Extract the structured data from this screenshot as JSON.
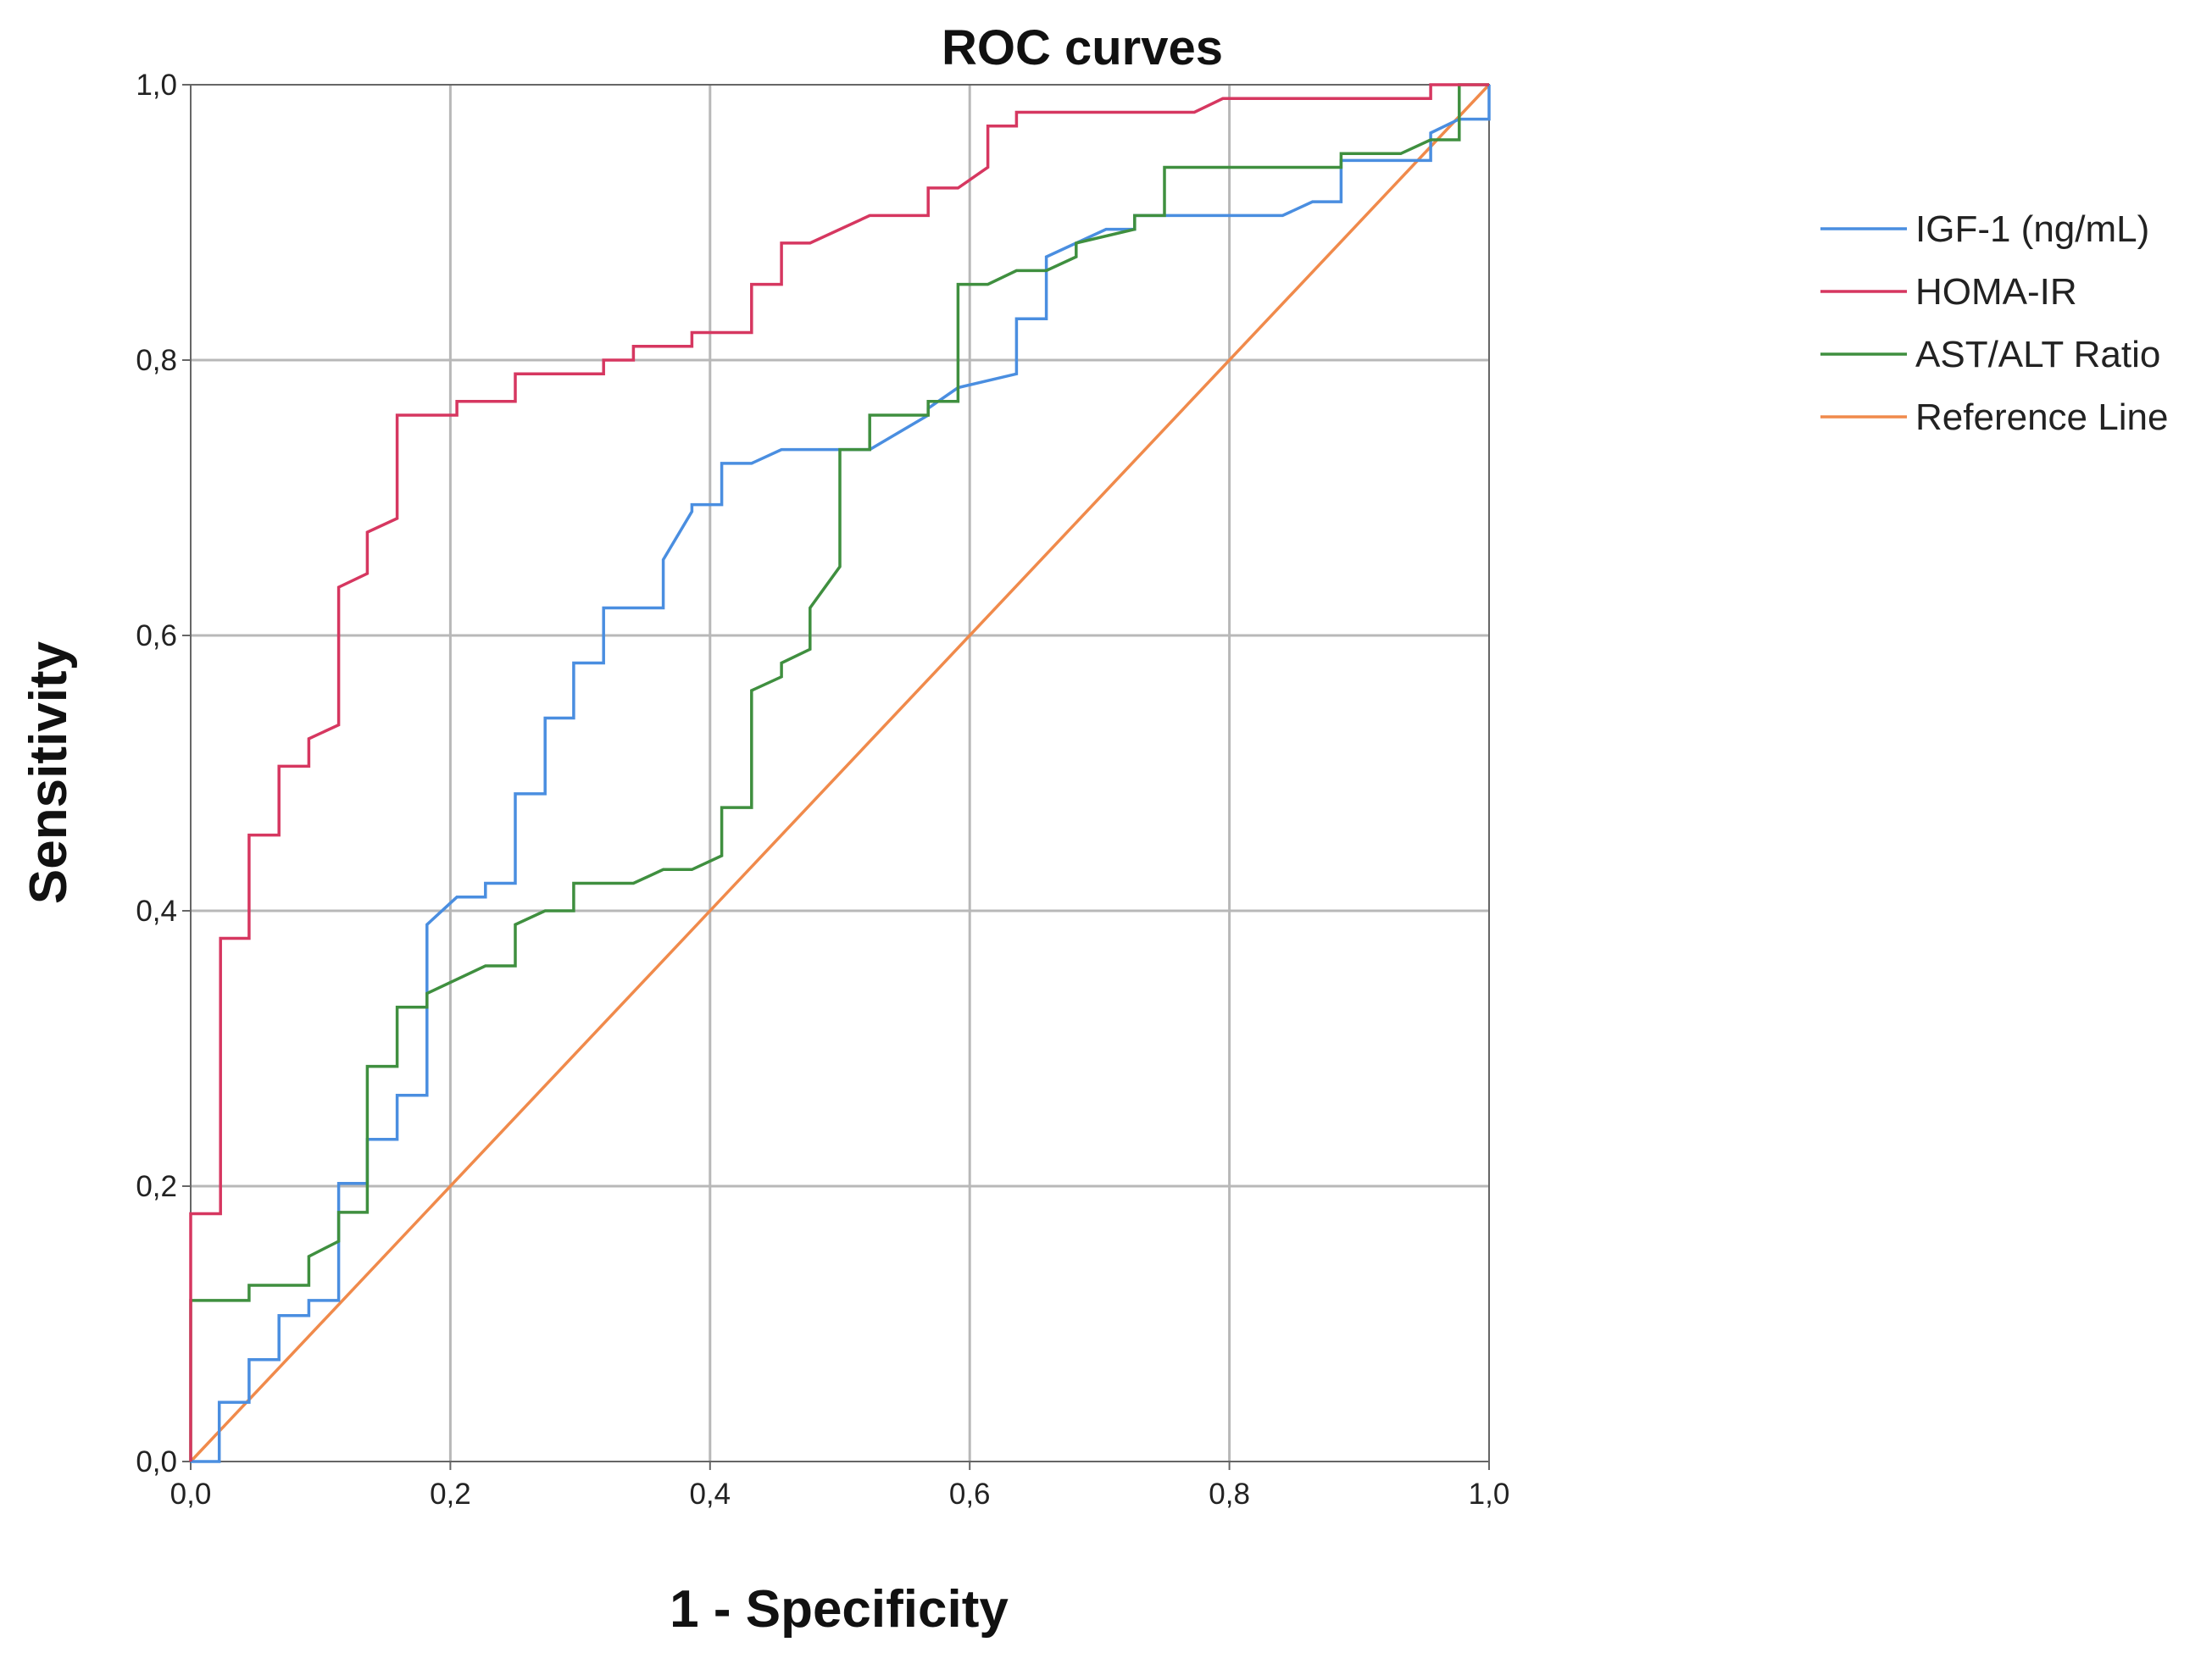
{
  "chart_data": {
    "type": "line",
    "title": "ROC curves",
    "xlabel": "1 - Specificity",
    "ylabel": "Sensitivity",
    "xlim": [
      0,
      1
    ],
    "ylim": [
      0,
      1
    ],
    "grid": true,
    "legend_position": "right",
    "x_ticks": [
      "0,0",
      "0,2",
      "0,4",
      "0,6",
      "0,8",
      "1,0"
    ],
    "y_ticks": [
      "0,0",
      "0,2",
      "0,4",
      "0,6",
      "0,8",
      "1,0"
    ],
    "series": [
      {
        "name": "IGF-1 (ng/mL)",
        "color": "#4a8ee0",
        "x": [
          0,
          0.022,
          0.022,
          0.045,
          0.045,
          0.068,
          0.068,
          0.091,
          0.091,
          0.114,
          0.114,
          0.136,
          0.136,
          0.159,
          0.159,
          0.182,
          0.182,
          0.205,
          0.227,
          0.227,
          0.25,
          0.25,
          0.273,
          0.273,
          0.295,
          0.295,
          0.318,
          0.318,
          0.364,
          0.364,
          0.386,
          0.386,
          0.409,
          0.409,
          0.432,
          0.455,
          0.523,
          0.568,
          0.568,
          0.591,
          0.636,
          0.636,
          0.659,
          0.659,
          0.682,
          0.705,
          0.727,
          0.727,
          0.841,
          0.864,
          0.886,
          0.886,
          0.955,
          0.955,
          0.977,
          1.0,
          1.0
        ],
        "y": [
          0,
          0,
          0.043,
          0.043,
          0.074,
          0.074,
          0.106,
          0.106,
          0.117,
          0.117,
          0.202,
          0.202,
          0.234,
          0.234,
          0.266,
          0.266,
          0.39,
          0.41,
          0.41,
          0.42,
          0.42,
          0.485,
          0.485,
          0.54,
          0.54,
          0.58,
          0.58,
          0.62,
          0.62,
          0.655,
          0.69,
          0.695,
          0.695,
          0.725,
          0.725,
          0.735,
          0.735,
          0.76,
          0.765,
          0.78,
          0.79,
          0.83,
          0.83,
          0.875,
          0.885,
          0.895,
          0.895,
          0.905,
          0.905,
          0.915,
          0.915,
          0.945,
          0.945,
          0.965,
          0.975,
          0.975,
          1.0
        ]
      },
      {
        "name": "HOMA-IR",
        "color": "#d63760",
        "x": [
          0,
          0,
          0.023,
          0.023,
          0.045,
          0.045,
          0.068,
          0.068,
          0.091,
          0.091,
          0.114,
          0.114,
          0.136,
          0.136,
          0.159,
          0.159,
          0.205,
          0.205,
          0.25,
          0.25,
          0.318,
          0.318,
          0.341,
          0.341,
          0.386,
          0.386,
          0.432,
          0.432,
          0.455,
          0.455,
          0.477,
          0.523,
          0.568,
          0.568,
          0.591,
          0.614,
          0.614,
          0.636,
          0.636,
          0.773,
          0.795,
          0.955,
          0.955,
          1.0
        ],
        "y": [
          0,
          0.18,
          0.18,
          0.38,
          0.38,
          0.455,
          0.455,
          0.505,
          0.505,
          0.525,
          0.535,
          0.635,
          0.645,
          0.675,
          0.685,
          0.76,
          0.76,
          0.77,
          0.77,
          0.79,
          0.79,
          0.8,
          0.8,
          0.81,
          0.81,
          0.82,
          0.82,
          0.855,
          0.855,
          0.885,
          0.885,
          0.905,
          0.905,
          0.925,
          0.925,
          0.94,
          0.97,
          0.97,
          0.98,
          0.98,
          0.99,
          0.99,
          1.0,
          1.0
        ]
      },
      {
        "name": "AST/ALT Ratio",
        "color": "#3f8f3f",
        "x": [
          0,
          0,
          0.045,
          0.045,
          0.091,
          0.091,
          0.114,
          0.114,
          0.136,
          0.136,
          0.159,
          0.159,
          0.182,
          0.182,
          0.227,
          0.25,
          0.25,
          0.273,
          0.295,
          0.295,
          0.341,
          0.364,
          0.386,
          0.409,
          0.409,
          0.432,
          0.432,
          0.455,
          0.455,
          0.477,
          0.477,
          0.5,
          0.5,
          0.523,
          0.523,
          0.568,
          0.568,
          0.591,
          0.591,
          0.614,
          0.636,
          0.659,
          0.682,
          0.682,
          0.727,
          0.727,
          0.75,
          0.75,
          0.886,
          0.886,
          0.932,
          0.955,
          0.977,
          0.977,
          1.0
        ],
        "y": [
          0,
          0.117,
          0.117,
          0.128,
          0.128,
          0.149,
          0.16,
          0.181,
          0.181,
          0.287,
          0.287,
          0.33,
          0.33,
          0.34,
          0.36,
          0.36,
          0.39,
          0.4,
          0.4,
          0.42,
          0.42,
          0.43,
          0.43,
          0.44,
          0.475,
          0.475,
          0.56,
          0.57,
          0.58,
          0.59,
          0.62,
          0.65,
          0.735,
          0.735,
          0.76,
          0.76,
          0.77,
          0.77,
          0.855,
          0.855,
          0.865,
          0.865,
          0.875,
          0.885,
          0.895,
          0.905,
          0.905,
          0.94,
          0.94,
          0.95,
          0.95,
          0.96,
          0.96,
          1.0,
          1.0
        ]
      },
      {
        "name": "Reference Line",
        "color": "#f08a4b",
        "x": [
          0,
          1
        ],
        "y": [
          0,
          1
        ]
      }
    ]
  }
}
